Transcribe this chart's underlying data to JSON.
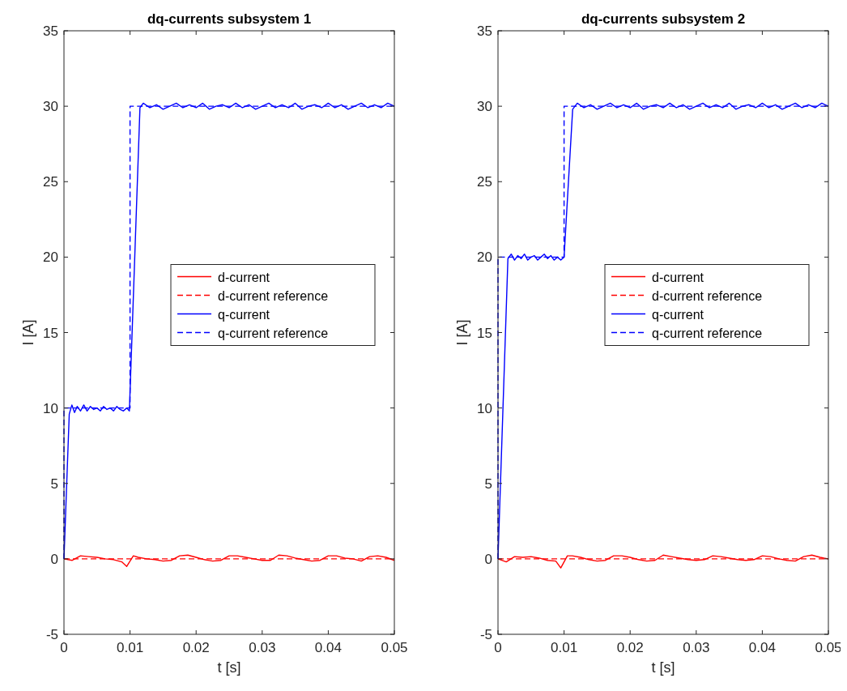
{
  "chart_data": [
    {
      "type": "line",
      "title": "dq-currents subsystem 1",
      "xlabel": "t [s]",
      "ylabel": "I [A]",
      "xlim": [
        0,
        0.05
      ],
      "ylim": [
        -5,
        35
      ],
      "xticks": [
        0,
        0.01,
        0.02,
        0.03,
        0.04,
        0.05
      ],
      "yticks": [
        -5,
        0,
        5,
        10,
        15,
        20,
        25,
        30,
        35
      ],
      "legend": "right",
      "grid": false,
      "series": [
        {
          "name": "d-current",
          "color": "#ff0000",
          "line_style": "solid",
          "x": [
            0,
            0.00125,
            0.0025,
            0.00375,
            0.005,
            0.00625,
            0.0075,
            0.00875,
            0.0095,
            0.0105,
            0.01125,
            0.0125,
            0.01375,
            0.015,
            0.01625,
            0.0175,
            0.01875,
            0.02,
            0.02125,
            0.0225,
            0.02375,
            0.025,
            0.02625,
            0.0275,
            0.02875,
            0.03,
            0.03125,
            0.0325,
            0.03375,
            0.035,
            0.03625,
            0.0375,
            0.03875,
            0.04,
            0.04125,
            0.0425,
            0.04375,
            0.045,
            0.04625,
            0.0475,
            0.04875,
            0.05
          ],
          "values": [
            0,
            -0.1,
            0.2,
            0.15,
            0.1,
            0,
            -0.05,
            -0.2,
            -0.5,
            0.2,
            0.1,
            0,
            -0.05,
            -0.15,
            -0.1,
            0.2,
            0.25,
            0.1,
            -0.05,
            -0.15,
            -0.1,
            0.2,
            0.2,
            0.1,
            0,
            -0.1,
            -0.1,
            0.25,
            0.2,
            0.05,
            -0.05,
            -0.15,
            -0.1,
            0.2,
            0.2,
            0.05,
            0,
            -0.15,
            0.15,
            0.2,
            0.1,
            -0.1
          ]
        },
        {
          "name": "d-current reference",
          "color": "#ff0000",
          "line_style": "dashed",
          "x": [
            0,
            0.05
          ],
          "values": [
            0,
            0
          ]
        },
        {
          "name": "q-current",
          "color": "#0000ff",
          "line_style": "solid",
          "x": [
            0,
            0.0008,
            0.0012,
            0.0016,
            0.002,
            0.0025,
            0.003,
            0.0035,
            0.004,
            0.0045,
            0.005,
            0.0055,
            0.006,
            0.0065,
            0.007,
            0.0075,
            0.008,
            0.0085,
            0.009,
            0.0095,
            0.0099,
            0.0115,
            0.012,
            0.013,
            0.014,
            0.015,
            0.016,
            0.017,
            0.018,
            0.019,
            0.02,
            0.021,
            0.022,
            0.023,
            0.024,
            0.025,
            0.026,
            0.027,
            0.028,
            0.029,
            0.03,
            0.031,
            0.032,
            0.033,
            0.034,
            0.035,
            0.036,
            0.037,
            0.038,
            0.039,
            0.04,
            0.041,
            0.042,
            0.043,
            0.044,
            0.045,
            0.046,
            0.047,
            0.048,
            0.049,
            0.05
          ],
          "values": [
            0,
            9.6,
            10.2,
            9.7,
            10.1,
            9.8,
            10.2,
            9.8,
            10.1,
            9.9,
            10,
            9.8,
            10.1,
            9.9,
            10,
            9.8,
            10.1,
            9.9,
            9.8,
            10,
            9.8,
            29.9,
            30.2,
            29.9,
            30.1,
            29.8,
            30,
            30.2,
            29.9,
            30.1,
            29.9,
            30.2,
            29.8,
            30,
            30.1,
            29.9,
            30.2,
            29.9,
            30.1,
            29.8,
            30,
            30.2,
            29.9,
            30.1,
            29.9,
            30.2,
            29.8,
            30,
            30.1,
            29.9,
            30.2,
            29.9,
            30.1,
            29.8,
            30,
            30.2,
            29.9,
            30.1,
            29.9,
            30.2,
            30
          ]
        },
        {
          "name": "q-current reference",
          "color": "#0000ff",
          "line_style": "dashed",
          "x": [
            0,
            0,
            0.01,
            0.01,
            0.05
          ],
          "values": [
            0,
            10,
            10,
            30,
            30
          ]
        }
      ]
    },
    {
      "type": "line",
      "title": "dq-currents subsystem 2",
      "xlabel": "t [s]",
      "ylabel": "I [A]",
      "xlim": [
        0,
        0.05
      ],
      "ylim": [
        -5,
        35
      ],
      "xticks": [
        0,
        0.01,
        0.02,
        0.03,
        0.04,
        0.05
      ],
      "yticks": [
        -5,
        0,
        5,
        10,
        15,
        20,
        25,
        30,
        35
      ],
      "legend": "right",
      "grid": false,
      "series": [
        {
          "name": "d-current",
          "color": "#ff0000",
          "line_style": "solid",
          "x": [
            0,
            0.00125,
            0.0025,
            0.00375,
            0.005,
            0.00625,
            0.0075,
            0.00875,
            0.0095,
            0.0105,
            0.01125,
            0.0125,
            0.01375,
            0.015,
            0.01625,
            0.0175,
            0.01875,
            0.02,
            0.02125,
            0.0225,
            0.02375,
            0.025,
            0.02625,
            0.0275,
            0.02875,
            0.03,
            0.03125,
            0.0325,
            0.03375,
            0.035,
            0.03625,
            0.0375,
            0.03875,
            0.04,
            0.04125,
            0.0425,
            0.04375,
            0.045,
            0.04625,
            0.0475,
            0.04875,
            0.05
          ],
          "values": [
            0,
            -0.2,
            0.15,
            0.1,
            0.15,
            0.05,
            -0.1,
            -0.15,
            -0.6,
            0.2,
            0.2,
            0.1,
            -0.05,
            -0.15,
            -0.1,
            0.2,
            0.2,
            0.1,
            -0.05,
            -0.15,
            -0.1,
            0.25,
            0.15,
            0.05,
            -0.05,
            -0.1,
            -0.05,
            0.2,
            0.15,
            0.05,
            -0.05,
            -0.1,
            -0.05,
            0.2,
            0.15,
            0,
            -0.1,
            -0.15,
            0.15,
            0.25,
            0.1,
            0
          ]
        },
        {
          "name": "d-current reference",
          "color": "#ff0000",
          "line_style": "dashed",
          "x": [
            0,
            0.05
          ],
          "values": [
            0,
            0
          ]
        },
        {
          "name": "q-current",
          "color": "#0000ff",
          "line_style": "solid",
          "x": [
            0,
            0.0015,
            0.002,
            0.0025,
            0.003,
            0.0035,
            0.004,
            0.0045,
            0.005,
            0.0055,
            0.006,
            0.0065,
            0.007,
            0.0075,
            0.008,
            0.0085,
            0.009,
            0.0095,
            0.01,
            0.0113,
            0.012,
            0.013,
            0.014,
            0.015,
            0.016,
            0.017,
            0.018,
            0.019,
            0.02,
            0.021,
            0.022,
            0.023,
            0.024,
            0.025,
            0.026,
            0.027,
            0.028,
            0.029,
            0.03,
            0.031,
            0.032,
            0.033,
            0.034,
            0.035,
            0.036,
            0.037,
            0.038,
            0.039,
            0.04,
            0.041,
            0.042,
            0.043,
            0.044,
            0.045,
            0.046,
            0.047,
            0.048,
            0.049,
            0.05
          ],
          "values": [
            0,
            19.9,
            20.2,
            19.8,
            20.1,
            19.9,
            20.2,
            19.8,
            20,
            20.1,
            19.8,
            20,
            20.2,
            19.9,
            20.1,
            19.8,
            20,
            19.8,
            20,
            29.8,
            30.2,
            29.9,
            30.1,
            29.8,
            30,
            30.2,
            29.9,
            30.1,
            29.9,
            30.2,
            29.8,
            30,
            30.1,
            29.9,
            30.2,
            29.9,
            30.1,
            29.8,
            30,
            30.2,
            29.9,
            30.1,
            29.9,
            30.2,
            29.8,
            30,
            30.1,
            29.9,
            30.2,
            29.9,
            30.1,
            29.8,
            30,
            30.2,
            29.9,
            30.1,
            29.9,
            30.2,
            30
          ]
        },
        {
          "name": "q-current reference",
          "color": "#0000ff",
          "line_style": "dashed",
          "x": [
            0,
            0,
            0.01,
            0.01,
            0.05
          ],
          "values": [
            0,
            20,
            20,
            30,
            30
          ]
        }
      ]
    }
  ]
}
